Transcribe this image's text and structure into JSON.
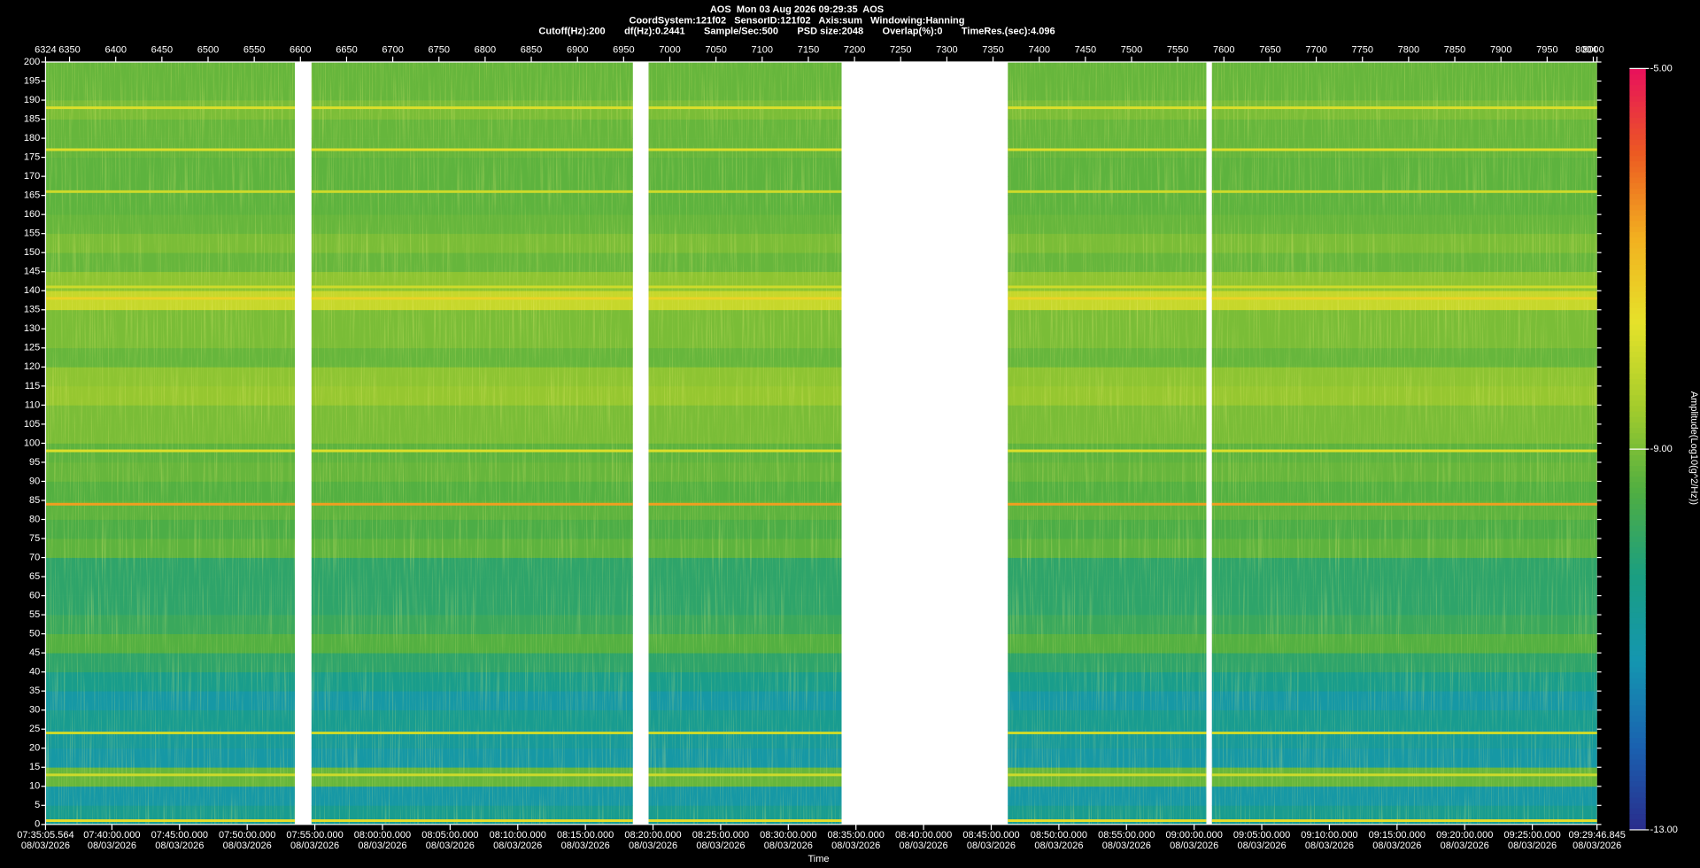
{
  "chart_data": {
    "type": "spectrogram",
    "title": "AOS  Mon 03 Aug 2026 09:29:35  AOS",
    "subtitle": "CoordSystem:121f02   SensorID:121f02   Axis:sum   Windowing:Hanning",
    "info": "Cutoff(Hz):200       df(Hz):0.2441       Sample/Sec:500       PSD size:2048       Overlap(%):0       TimeRes.(sec):4.096",
    "xlim": [
      6324,
      8004
    ],
    "xticks": [
      6324,
      6350,
      6400,
      6450,
      6500,
      6550,
      6600,
      6650,
      6700,
      6750,
      6800,
      6850,
      6900,
      6950,
      7000,
      7050,
      7100,
      7150,
      7200,
      7250,
      7300,
      7350,
      7400,
      7450,
      7500,
      7550,
      7600,
      7650,
      7700,
      7750,
      7800,
      7850,
      7900,
      7950,
      8000,
      8004
    ],
    "x2lim": [
      "07:35:05.564",
      "09:29:46.845"
    ],
    "x2ticks": [
      "07:35:05.564",
      "07:40:00.000",
      "07:45:00.000",
      "07:50:00.000",
      "07:55:00.000",
      "08:00:00.000",
      "08:05:00.000",
      "08:10:00.000",
      "08:15:00.000",
      "08:20:00.000",
      "08:25:00.000",
      "08:30:00.000",
      "08:35:00.000",
      "08:40:00.000",
      "08:45:00.000",
      "08:50:00.000",
      "08:55:00.000",
      "09:00:00.000",
      "09:05:00.000",
      "09:10:00.000",
      "09:15:00.000",
      "09:20:00.000",
      "09:25:00.000",
      "09:29:46.845"
    ],
    "date": "08/03/2026",
    "xlabel": "Time",
    "ylim": [
      0,
      200
    ],
    "yticks": [
      0,
      5,
      10,
      15,
      20,
      25,
      30,
      35,
      40,
      45,
      50,
      55,
      60,
      65,
      70,
      75,
      80,
      85,
      90,
      95,
      100,
      105,
      110,
      115,
      120,
      125,
      130,
      135,
      140,
      145,
      150,
      155,
      160,
      165,
      170,
      175,
      180,
      185,
      190,
      195,
      200
    ],
    "colorbar_label": "Amplitude(Log10(g^2/Hz))",
    "clim": [
      -13,
      -5
    ],
    "cticks": [
      {
        "value": -5,
        "label": "-5.00"
      },
      {
        "value": -9,
        "label": "-9.00"
      },
      {
        "value": -13,
        "label": "-13.00"
      }
    ],
    "colorscale": [
      "#2a2c8c",
      "#1a62b0",
      "#1496b0",
      "#1a9e82",
      "#4fae42",
      "#a4cc2c",
      "#e6e22a",
      "#f2b020",
      "#ec5a22",
      "#e8105c"
    ],
    "segments": [
      [
        6324,
        6594
      ],
      [
        6612,
        6960
      ],
      [
        6977,
        7186
      ],
      [
        7366,
        7581
      ],
      [
        7587,
        8004
      ]
    ],
    "frequency_bins": [
      0,
      5,
      10,
      15,
      20,
      25,
      30,
      35,
      40,
      45,
      50,
      55,
      60,
      65,
      70,
      75,
      80,
      85,
      90,
      95,
      100,
      105,
      110,
      115,
      120,
      125,
      130,
      135,
      140,
      145,
      150,
      155,
      160,
      165,
      170,
      175,
      180,
      185,
      190,
      195,
      200
    ],
    "amplitude": [
      -10.6,
      -11,
      -9.2,
      -11,
      -10.8,
      -10.6,
      -11,
      -10.5,
      -10,
      -9.4,
      -9.8,
      -10,
      -10,
      -10,
      -9.3,
      -9.5,
      -9.3,
      -9.4,
      -9.2,
      -9.3,
      -9,
      -9,
      -8.7,
      -8.8,
      -9.2,
      -9,
      -9,
      -8.1,
      -8.8,
      -9.2,
      -9,
      -9.2,
      -9.3,
      -9.3,
      -9.3,
      -9.2,
      -9.2,
      -9,
      -9.2,
      -9.2
    ],
    "lines": [
      {
        "frequency": 1,
        "amplitude": -7.6
      },
      {
        "frequency": 13,
        "amplitude": -8
      },
      {
        "frequency": 24,
        "amplitude": -8
      },
      {
        "frequency": 84,
        "amplitude": -6.6
      },
      {
        "frequency": 98,
        "amplitude": -7.8
      },
      {
        "frequency": 138,
        "amplitude": -7.4
      },
      {
        "frequency": 141,
        "amplitude": -8
      },
      {
        "frequency": 166,
        "amplitude": -8
      },
      {
        "frequency": 177,
        "amplitude": -7.8
      },
      {
        "frequency": 188,
        "amplitude": -7.8
      }
    ]
  }
}
